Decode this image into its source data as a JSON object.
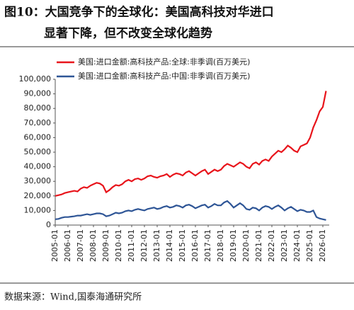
{
  "chart_data": {
    "type": "line",
    "title": [
      "图10：大国竞争下的全球化：美国高科技对华进口",
      "显著下降，但不改变全球化趋势"
    ],
    "source": "数据来源：Wind,国泰海通研究所",
    "x": [
      "2005-01",
      "2005-04",
      "2005-07",
      "2005-10",
      "2006-01",
      "2006-04",
      "2006-07",
      "2006-10",
      "2007-01",
      "2007-04",
      "2007-07",
      "2007-10",
      "2008-01",
      "2008-04",
      "2008-07",
      "2008-10",
      "2009-01",
      "2009-04",
      "2009-07",
      "2009-10",
      "2010-01",
      "2010-04",
      "2010-07",
      "2010-10",
      "2011-01",
      "2011-04",
      "2011-07",
      "2011-10",
      "2012-01",
      "2012-04",
      "2012-07",
      "2012-10",
      "2013-01",
      "2013-04",
      "2013-07",
      "2013-10",
      "2014-01",
      "2014-04",
      "2014-07",
      "2014-10",
      "2015-01",
      "2015-04",
      "2015-07",
      "2015-10",
      "2016-01",
      "2016-04",
      "2016-07",
      "2016-10",
      "2017-01",
      "2017-04",
      "2017-07",
      "2017-10",
      "2018-01",
      "2018-04",
      "2018-07",
      "2018-10",
      "2019-01",
      "2019-04",
      "2019-07",
      "2019-10",
      "2020-01",
      "2020-04",
      "2020-07",
      "2020-10",
      "2021-01",
      "2021-04",
      "2021-07",
      "2021-10",
      "2022-01",
      "2022-04",
      "2022-07",
      "2022-10",
      "2023-01",
      "2023-04",
      "2023-07",
      "2023-10",
      "2024-01",
      "2024-04",
      "2024-07",
      "2024-10",
      "2025-01",
      "2025-04",
      "2025-07",
      "2025-10",
      "2026-01",
      "2026-04"
    ],
    "series": [
      {
        "name": "美国:进口金额:高科技产品:全球:非季调(百万美元)",
        "color": "#e8141b",
        "values": [
          20000,
          20500,
          21000,
          22000,
          22500,
          23000,
          23500,
          23000,
          25000,
          26000,
          25500,
          27000,
          28000,
          29000,
          28500,
          27000,
          22500,
          24000,
          26000,
          27500,
          27000,
          28000,
          30000,
          31000,
          30000,
          31500,
          32000,
          31000,
          32000,
          33500,
          34000,
          33000,
          32500,
          33500,
          34000,
          35000,
          33000,
          34500,
          35500,
          35000,
          34000,
          36000,
          37000,
          35500,
          34000,
          35500,
          37000,
          38000,
          35000,
          36500,
          38000,
          37000,
          38000,
          40500,
          42000,
          41000,
          40000,
          41500,
          43000,
          42000,
          40000,
          39000,
          42000,
          43000,
          41500,
          44000,
          45000,
          44000,
          47000,
          49000,
          51000,
          50000,
          52000,
          54500,
          53000,
          51000,
          50000,
          54000,
          55000,
          56000,
          60000,
          67000,
          72000,
          78000,
          81000,
          92000
        ]
      },
      {
        "name": "美国:进口金额:高科技产品:中国:非季调(百万美元)",
        "color": "#2e5596",
        "values": [
          4000,
          4200,
          5000,
          5500,
          5500,
          5800,
          6000,
          6500,
          6500,
          7000,
          7500,
          7000,
          7500,
          8000,
          8000,
          7500,
          6000,
          6500,
          7500,
          8500,
          8000,
          8500,
          9500,
          10000,
          9500,
          10500,
          11000,
          10500,
          10000,
          11000,
          11500,
          12000,
          11000,
          11500,
          12500,
          13000,
          12000,
          12500,
          13500,
          13000,
          12000,
          13500,
          14000,
          13000,
          11500,
          12500,
          13500,
          14000,
          12000,
          13000,
          14500,
          13500,
          13500,
          15500,
          16500,
          14500,
          12000,
          13500,
          15000,
          13500,
          11000,
          10500,
          12000,
          11500,
          10000,
          12000,
          13000,
          12500,
          11000,
          12500,
          13500,
          12000,
          10000,
          11500,
          12500,
          11000,
          9500,
          10500,
          10000,
          9000,
          9000,
          10000,
          5500,
          4500,
          4000,
          3500
        ]
      }
    ],
    "ylim": [
      0,
      100000
    ],
    "yticks": [
      0,
      {
        "value": 10000,
        "label": "10,000"
      },
      {
        "value": 20000,
        "label": "20,000"
      },
      {
        "value": 30000,
        "label": "30,000"
      },
      {
        "value": 40000,
        "label": "40,000"
      },
      {
        "value": 50000,
        "label": "50,000"
      },
      {
        "value": 60000,
        "label": "60,000"
      },
      {
        "value": 70000,
        "label": "70,000"
      },
      {
        "value": 80000,
        "label": "80,000"
      },
      {
        "value": 90000,
        "label": "90,000"
      },
      {
        "value": 100000,
        "label": "100,000"
      }
    ],
    "xticks": [
      "2005-01",
      "2006-01",
      "2007-01",
      "2008-01",
      "2009-01",
      "2010-01",
      "2011-01",
      "2012-01",
      "2013-01",
      "2014-01",
      "2015-01",
      "2016-01",
      "2017-01",
      "2018-01",
      "2019-01",
      "2020-01",
      "2021-01",
      "2022-01",
      "2023-01",
      "2024-01",
      "2025-01",
      "2026-01"
    ]
  }
}
